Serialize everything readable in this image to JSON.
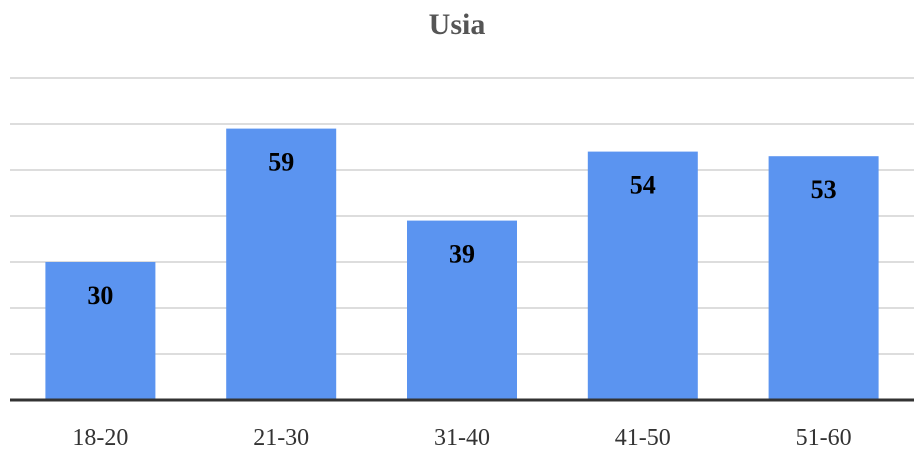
{
  "chart_data": {
    "type": "bar",
    "title": "Usia",
    "xlabel": "",
    "ylabel": "",
    "categories": [
      "18-20",
      "21-30",
      "31-40",
      "41-50",
      "51-60"
    ],
    "values": [
      30,
      59,
      39,
      54,
      53
    ],
    "ylim": [
      0,
      70
    ],
    "grid": true,
    "legend": "none",
    "bar_color": "#5b94f0",
    "grid_color": "#dddddd",
    "axis_color": "#333333"
  }
}
